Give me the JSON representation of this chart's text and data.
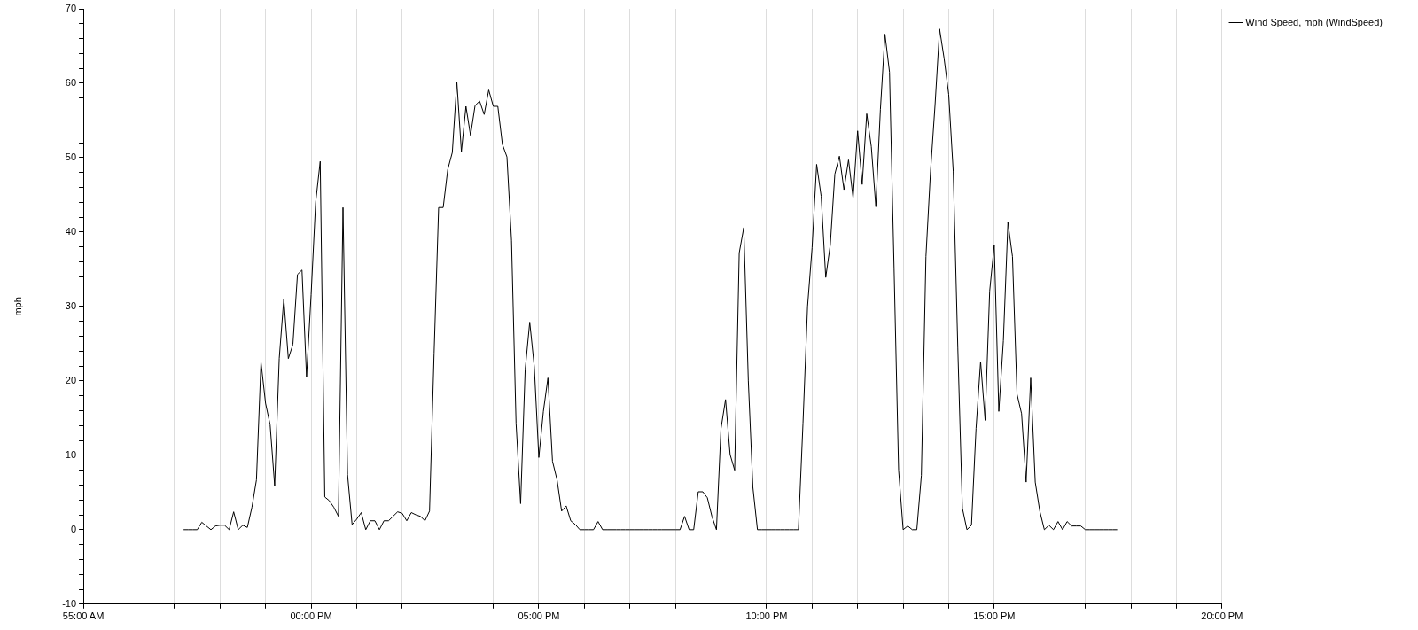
{
  "chart_data": {
    "type": "line",
    "ylabel": "mph",
    "categories": [
      "55:00 AM",
      null,
      null,
      null,
      null,
      null,
      null,
      null,
      null,
      null,
      null,
      null,
      null,
      null,
      null,
      null,
      null,
      null,
      null,
      null,
      null,
      null,
      null,
      null,
      null,
      null,
      null,
      null,
      null,
      null,
      null,
      null,
      null,
      null,
      null,
      null,
      null,
      null,
      null,
      null,
      null,
      null,
      null,
      null,
      null,
      null,
      null,
      null,
      null,
      null,
      "00:00 PM",
      null,
      null,
      null,
      null,
      null,
      null,
      null,
      null,
      null,
      null,
      null,
      null,
      null,
      null,
      null,
      null,
      null,
      null,
      null,
      null,
      null,
      null,
      null,
      null,
      null,
      null,
      null,
      null,
      null,
      null,
      null,
      null,
      null,
      null,
      null,
      null,
      null,
      null,
      null,
      null,
      null,
      null,
      null,
      null,
      null,
      null,
      null,
      null,
      null,
      "05:00 PM",
      null,
      null,
      null,
      null,
      null,
      null,
      null,
      null,
      null,
      null,
      null,
      null,
      null,
      null,
      null,
      null,
      null,
      null,
      null,
      null,
      null,
      null,
      null,
      null,
      null,
      null,
      null,
      null,
      null,
      null,
      null,
      null,
      null,
      null,
      null,
      null,
      null,
      null,
      null,
      null,
      null,
      null,
      null,
      null,
      null,
      null,
      null,
      null,
      null,
      "10:00 PM",
      null,
      null,
      null,
      null,
      null,
      null,
      null,
      null,
      null,
      null,
      null,
      null,
      null,
      null,
      null,
      null,
      null,
      null,
      null,
      null,
      null,
      null,
      null,
      null,
      null,
      null,
      null,
      null,
      null,
      null,
      null,
      null,
      null,
      null,
      null,
      null,
      null,
      null,
      null,
      null,
      null,
      null,
      null,
      null,
      null,
      null,
      null,
      null,
      null,
      "15:00 PM",
      null,
      null,
      null,
      null,
      null,
      null,
      null,
      null,
      null,
      null,
      null,
      null,
      null,
      null,
      null,
      null,
      null,
      null,
      null,
      null,
      null,
      null,
      null,
      null,
      null,
      null,
      null,
      null,
      null,
      null,
      null,
      null,
      null,
      null,
      null,
      null,
      null,
      null,
      null,
      null,
      null,
      null,
      null,
      null,
      null,
      null,
      null,
      null,
      null,
      "20:00 PM"
    ],
    "ylim": [
      -10,
      70
    ],
    "yticks": [
      -10,
      {
        "value": -8,
        "label": null
      },
      {
        "value": -6,
        "label": null
      },
      {
        "value": -4,
        "label": null
      },
      {
        "value": -2,
        "label": null
      },
      0,
      {
        "value": 2,
        "label": null
      },
      {
        "value": 4,
        "label": null
      },
      {
        "value": 6,
        "label": null
      },
      {
        "value": 8,
        "label": null
      },
      10,
      {
        "value": 12,
        "label": null
      },
      {
        "value": 14,
        "label": null
      },
      {
        "value": 16,
        "label": null
      },
      {
        "value": 18,
        "label": null
      },
      20,
      {
        "value": 22,
        "label": null
      },
      {
        "value": 24,
        "label": null
      },
      {
        "value": 26,
        "label": null
      },
      {
        "value": 28,
        "label": null
      },
      30,
      {
        "value": 32,
        "label": null
      },
      {
        "value": 34,
        "label": null
      },
      {
        "value": 36,
        "label": null
      },
      {
        "value": 38,
        "label": null
      },
      40,
      {
        "value": 42,
        "label": null
      },
      {
        "value": 44,
        "label": null
      },
      {
        "value": 46,
        "label": null
      },
      {
        "value": 48,
        "label": null
      },
      50,
      {
        "value": 52,
        "label": null
      },
      {
        "value": 54,
        "label": null
      },
      {
        "value": 56,
        "label": null
      },
      {
        "value": 58,
        "label": null
      },
      60,
      {
        "value": 62,
        "label": null
      },
      {
        "value": 64,
        "label": null
      },
      {
        "value": 66,
        "label": null
      },
      {
        "value": 68,
        "label": null
      },
      70
    ],
    "grid": "x",
    "legend": "top right",
    "marker": "none",
    "line_style": "solid",
    "series": [
      {
        "name": "Wind Speed, mph (WindSpeed)",
        "color": "#000000",
        "values": [
          null,
          null,
          null,
          null,
          null,
          null,
          null,
          null,
          null,
          null,
          null,
          null,
          null,
          null,
          null,
          null,
          null,
          null,
          null,
          null,
          null,
          null,
          0,
          0,
          0,
          0,
          1,
          0.5,
          0,
          0.5,
          0.6,
          0.6,
          0,
          2.4,
          0,
          0.6,
          0.3,
          3.0,
          6.7,
          22.5,
          17,
          14.1,
          5.9,
          23,
          31,
          23,
          24.9,
          34.3,
          34.9,
          20.5,
          31.6,
          44,
          49.5,
          4.4,
          3.9,
          3,
          1.8,
          43.3,
          7.4,
          0.7,
          1.4,
          2.3,
          0,
          1.2,
          1.2,
          0,
          1.2,
          1.2,
          1.8,
          2.4,
          2.2,
          1.2,
          2.3,
          2.0,
          1.8,
          1.2,
          2.5,
          23.7,
          43.3,
          43.3,
          48.4,
          50.7,
          60.2,
          50.8,
          56.9,
          53,
          57,
          57.6,
          55.8,
          59.1,
          56.9,
          56.9,
          51.8,
          50.1,
          38.9,
          14.3,
          3.5,
          21.5,
          27.9,
          21.9,
          9.7,
          15.9,
          20.4,
          9.2,
          6.7,
          2.5,
          3.2,
          1.2,
          0.7,
          0,
          0,
          0,
          0,
          1.1,
          0,
          0,
          0,
          0,
          0,
          0,
          0,
          0,
          0,
          0,
          0,
          0,
          0,
          0,
          0,
          0,
          0,
          0,
          1.8,
          0,
          0,
          5.1,
          5.1,
          4.3,
          1.8,
          0,
          13.6,
          17.5,
          10.1,
          8,
          37.2,
          40.6,
          20,
          5.7,
          0,
          0,
          0,
          0,
          0,
          0,
          0,
          0,
          0,
          0,
          14.3,
          30,
          37.9,
          49.1,
          44.8,
          33.9,
          38.3,
          47.8,
          50.2,
          45.7,
          49.7,
          44.6,
          53.6,
          46.4,
          55.9,
          51.5,
          43.4,
          56.5,
          66.6,
          61.5,
          35.1,
          8.0,
          0,
          0.5,
          0,
          0,
          7.3,
          36.7,
          48.1,
          57.1,
          67.3,
          63.3,
          58.5,
          48.1,
          24.4,
          2.9,
          0,
          0.6,
          13.6,
          22.6,
          14.7,
          32.1,
          38.3,
          15.9,
          25.4,
          41.3,
          36.7,
          18.2,
          15.6,
          6.4,
          20.4,
          6.4,
          2.5,
          0,
          0.6,
          0,
          1.1,
          0,
          1.1,
          0.5,
          0.5,
          0.5,
          0,
          0,
          0,
          0,
          0,
          0,
          0,
          0,
          null,
          null,
          null,
          null,
          null,
          null,
          null,
          null,
          null,
          null,
          null,
          null,
          null,
          null,
          null,
          null,
          null,
          null,
          null,
          null,
          null,
          null,
          null
        ]
      }
    ]
  }
}
